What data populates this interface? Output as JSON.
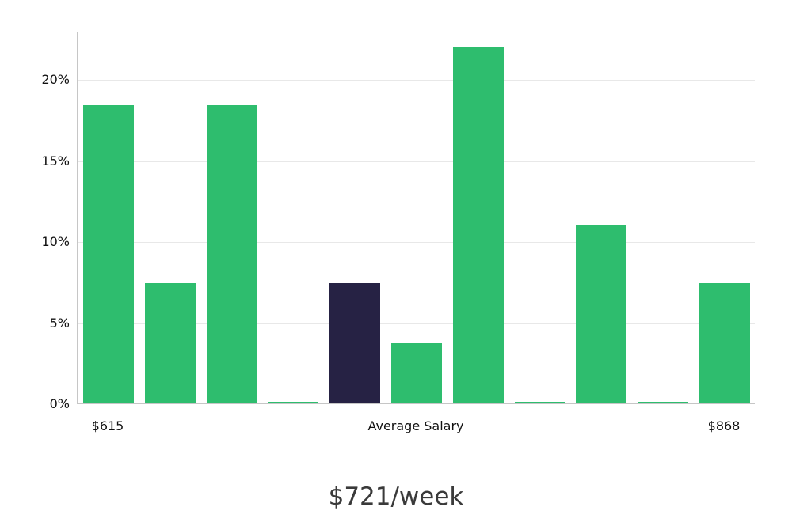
{
  "chart_data": {
    "type": "bar",
    "title": "$721/week",
    "values": [
      18.4,
      7.4,
      18.4,
      0.1,
      7.4,
      3.7,
      22.0,
      0.1,
      11.0,
      0.1,
      7.4
    ],
    "highlight_index": 4,
    "ylim": [
      0,
      23
    ],
    "yticks": [
      {
        "value": 0,
        "label": "0%"
      },
      {
        "value": 5,
        "label": "5%"
      },
      {
        "value": 10,
        "label": "10%"
      },
      {
        "value": 15,
        "label": "15%"
      },
      {
        "value": 20,
        "label": "20%"
      }
    ],
    "xlabels": [
      {
        "text": "$615",
        "position": "first-bar-center"
      },
      {
        "text": "Average Salary",
        "position": "chart-center"
      },
      {
        "text": "$868",
        "position": "last-bar-center"
      }
    ],
    "legend": "none",
    "grid": "horizontal",
    "colors": {
      "bar": "#2ebd6e",
      "highlight_bar": "#262244",
      "gridline": "#e8e8e8",
      "axis": "#c6c6c6",
      "tick_text": "#111111",
      "title_text": "#3a3a3a"
    }
  }
}
